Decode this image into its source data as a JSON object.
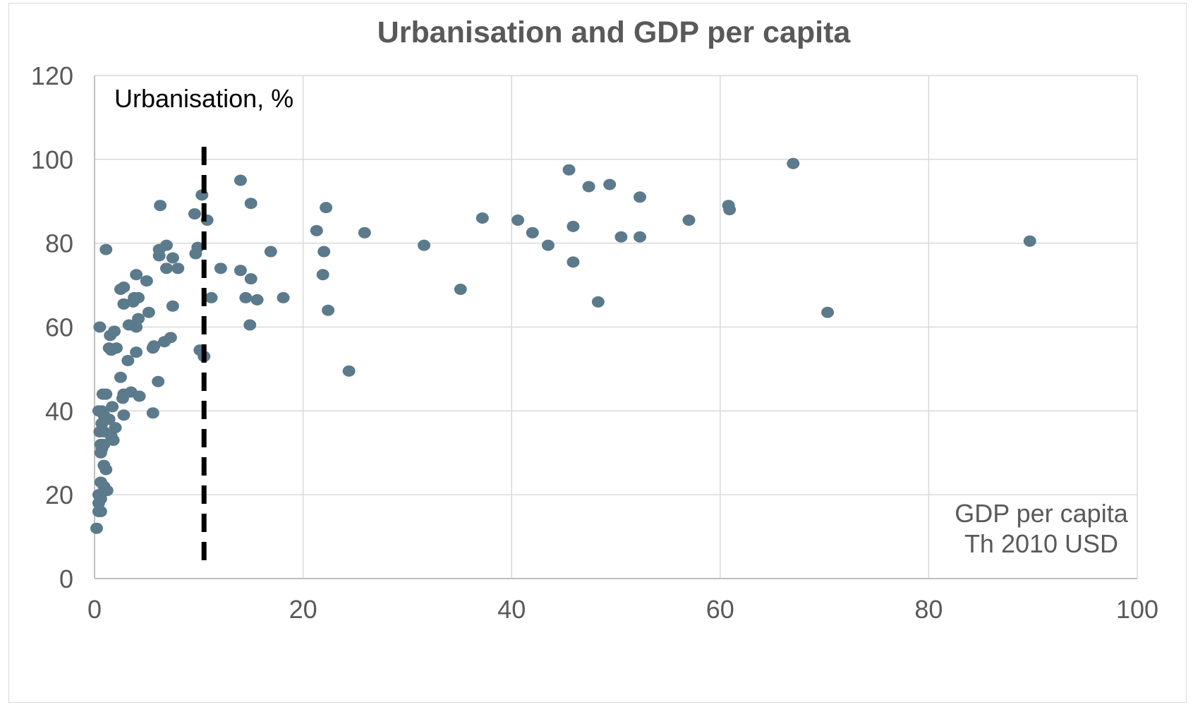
{
  "chart_data": {
    "type": "scatter",
    "title": "Urbanisation and GDP per capita",
    "y_annotation": "Urbanisation, %",
    "x_annotation_lines": [
      "GDP per capita",
      "Th 2010 USD"
    ],
    "xlim": [
      0,
      100
    ],
    "ylim": [
      0,
      120
    ],
    "x_ticks": [
      0,
      20,
      40,
      60,
      80,
      100
    ],
    "y_ticks": [
      0,
      20,
      40,
      60,
      80,
      100,
      120
    ],
    "grid": true,
    "marker_color": "#5b7a8c",
    "threshold_line": {
      "x": 10.5,
      "style": "dashed",
      "color": "#000000"
    },
    "points": [
      [
        0.2,
        12
      ],
      [
        0.4,
        16
      ],
      [
        0.6,
        16
      ],
      [
        0.4,
        18
      ],
      [
        0.6,
        19
      ],
      [
        0.4,
        20
      ],
      [
        1.2,
        21
      ],
      [
        0.6,
        23
      ],
      [
        0.9,
        22
      ],
      [
        1.1,
        26
      ],
      [
        0.9,
        27
      ],
      [
        0.6,
        30
      ],
      [
        0.7,
        31
      ],
      [
        0.6,
        32
      ],
      [
        0.9,
        32
      ],
      [
        1.8,
        33
      ],
      [
        1.6,
        34
      ],
      [
        0.9,
        35
      ],
      [
        0.5,
        35
      ],
      [
        2.0,
        36
      ],
      [
        0.7,
        37
      ],
      [
        1.4,
        38
      ],
      [
        0.9,
        39
      ],
      [
        0.4,
        40
      ],
      [
        0.7,
        40
      ],
      [
        1.7,
        41
      ],
      [
        2.8,
        39
      ],
      [
        5.6,
        39.5
      ],
      [
        2.7,
        43
      ],
      [
        2.8,
        44
      ],
      [
        1.1,
        44
      ],
      [
        0.8,
        44
      ],
      [
        3.5,
        44.5
      ],
      [
        4.3,
        43.5
      ],
      [
        2.5,
        48
      ],
      [
        6.1,
        47
      ],
      [
        3.2,
        52
      ],
      [
        5.6,
        55
      ],
      [
        5.7,
        55.5
      ],
      [
        4.0,
        54
      ],
      [
        1.4,
        55
      ],
      [
        1.6,
        54.5
      ],
      [
        2.1,
        55
      ],
      [
        10.1,
        54.5
      ],
      [
        10.5,
        53
      ],
      [
        6.7,
        56.5
      ],
      [
        7.3,
        57.5
      ],
      [
        1.5,
        58
      ],
      [
        1.9,
        59
      ],
      [
        0.5,
        60
      ],
      [
        4.0,
        60
      ],
      [
        3.3,
        60.5
      ],
      [
        4.2,
        62
      ],
      [
        5.2,
        63.5
      ],
      [
        14.9,
        60.5
      ],
      [
        22.4,
        64
      ],
      [
        24.4,
        49.5
      ],
      [
        2.8,
        65.5
      ],
      [
        3.7,
        66
      ],
      [
        7.5,
        65
      ],
      [
        11.2,
        67
      ],
      [
        15.6,
        66.5
      ],
      [
        18.1,
        67
      ],
      [
        14.5,
        67
      ],
      [
        3.8,
        67
      ],
      [
        4.2,
        67
      ],
      [
        2.5,
        69
      ],
      [
        2.8,
        69.5
      ],
      [
        5.0,
        71
      ],
      [
        15.0,
        71.5
      ],
      [
        4.0,
        72.5
      ],
      [
        21.9,
        72.5
      ],
      [
        6.9,
        74
      ],
      [
        8.0,
        74
      ],
      [
        12.1,
        74
      ],
      [
        14.0,
        73.5
      ],
      [
        6.2,
        77
      ],
      [
        7.5,
        76.5
      ],
      [
        9.7,
        77.5
      ],
      [
        16.9,
        78
      ],
      [
        22.0,
        78
      ],
      [
        6.2,
        78.5
      ],
      [
        6.9,
        79.5
      ],
      [
        9.9,
        79
      ],
      [
        1.1,
        78.5
      ],
      [
        31.6,
        79.5
      ],
      [
        43.5,
        79.5
      ],
      [
        50.5,
        81.5
      ],
      [
        52.3,
        81.5
      ],
      [
        89.7,
        80.5
      ],
      [
        25.9,
        82.5
      ],
      [
        21.3,
        83
      ],
      [
        42.0,
        82.5
      ],
      [
        45.9,
        84
      ],
      [
        10.8,
        85.5
      ],
      [
        37.2,
        86
      ],
      [
        40.6,
        85.5
      ],
      [
        57.0,
        85.5
      ],
      [
        9.6,
        87
      ],
      [
        60.9,
        88
      ],
      [
        6.3,
        89
      ],
      [
        15.0,
        89.5
      ],
      [
        22.2,
        88.5
      ],
      [
        60.8,
        89
      ],
      [
        52.3,
        91
      ],
      [
        10.3,
        91.5
      ],
      [
        47.4,
        93.5
      ],
      [
        49.4,
        94
      ],
      [
        14.0,
        95
      ],
      [
        45.5,
        97.5
      ],
      [
        67.0,
        99
      ],
      [
        35.1,
        69
      ],
      [
        48.3,
        66
      ],
      [
        45.9,
        75.5
      ],
      [
        70.3,
        63.5
      ]
    ]
  }
}
